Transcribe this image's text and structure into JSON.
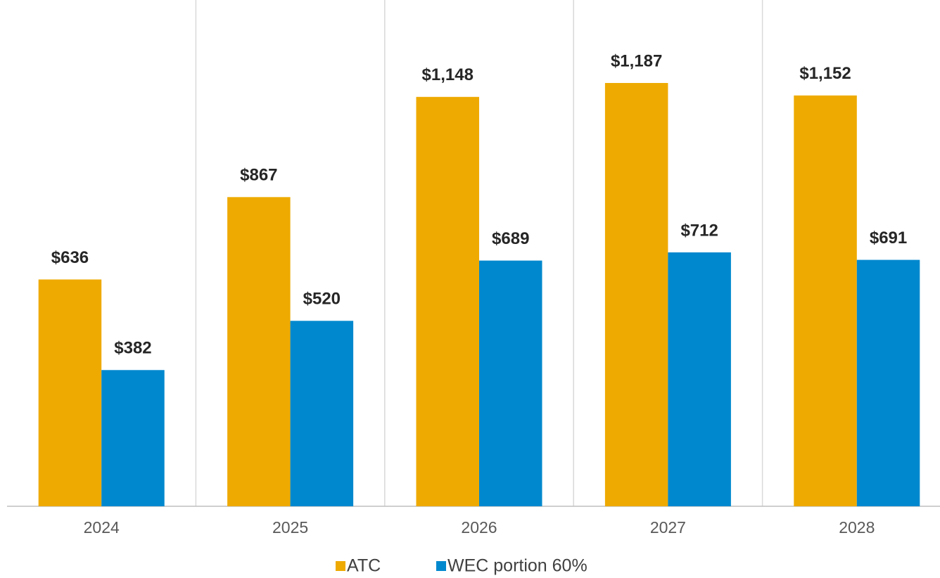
{
  "chart_data": {
    "type": "bar",
    "categories": [
      "2024",
      "2025",
      "2026",
      "2027",
      "2028"
    ],
    "series": [
      {
        "name": "ATC",
        "color": "#EEAA00",
        "values": [
          636,
          867,
          1148,
          1187,
          1152
        ],
        "value_labels": [
          "$636",
          "$867",
          "$1,148",
          "$1,187",
          "$1,152"
        ]
      },
      {
        "name": "WEC portion 60%",
        "color": "#0088CE",
        "values": [
          382,
          520,
          689,
          712,
          691
        ],
        "value_labels": [
          "$382",
          "$520",
          "$689",
          "$712",
          "$691"
        ]
      }
    ],
    "ylim": [
      0,
      1400
    ]
  }
}
